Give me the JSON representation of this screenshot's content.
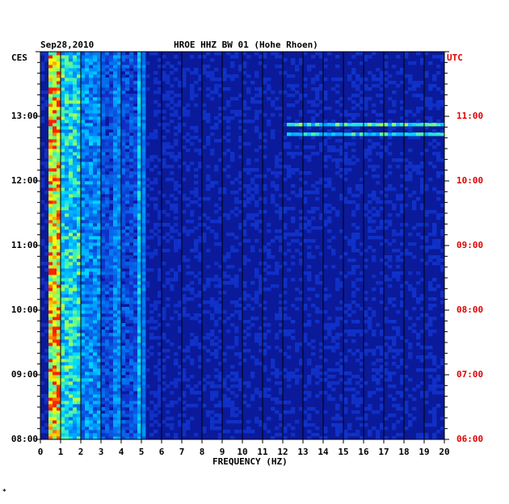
{
  "header": {
    "date": "Sep28,2010",
    "station": "HROE HHZ BW 01 (Hohe Rhoen)",
    "left_zone": "CES",
    "right_zone": "UTC"
  },
  "footer_mark": "*",
  "chart_data": {
    "type": "heatmap",
    "title": "HROE HHZ BW 01 (Hohe Rhoen)",
    "date": "Sep28,2010",
    "xlabel": "FREQUENCY (HZ)",
    "xlim": [
      0,
      20
    ],
    "x_ticks": [
      "0",
      "1",
      "2",
      "3",
      "4",
      "5",
      "6",
      "7",
      "8",
      "9",
      "10",
      "11",
      "12",
      "13",
      "14",
      "15",
      "16",
      "17",
      "18",
      "19",
      "20"
    ],
    "y_left_label": "CES",
    "y_right_label": "UTC",
    "y_left_ticks": [
      "13:00",
      "12:00",
      "11:00",
      "10:00",
      "09:00",
      "08:00"
    ],
    "y_right_ticks": [
      "11:00",
      "10:00",
      "09:00",
      "08:00",
      "07:00",
      "06:00"
    ],
    "y_range_utc_hours": [
      6.0,
      12.0
    ],
    "grid": true,
    "colors": {
      "background": "#0a1a9a",
      "low": "#1030c8",
      "mid": "#00c8ff",
      "high": "#ffff00",
      "peak": "#ff2000",
      "grid": "#000000",
      "right_labels": "#e00000"
    },
    "features": [
      {
        "kind": "band",
        "freq_hz": [
          0.3,
          0.9
        ],
        "intensity": "high"
      },
      {
        "kind": "band",
        "freq_hz": [
          0.9,
          3.0
        ],
        "intensity": "mid"
      },
      {
        "kind": "line",
        "freq_hz": 3.7,
        "intensity": "low"
      },
      {
        "kind": "line",
        "freq_hz": 4.9,
        "intensity": "mid"
      },
      {
        "kind": "streak",
        "utc_hour": 10.85,
        "freq_hz": [
          12.0,
          20.0
        ],
        "intensity": "mid"
      },
      {
        "kind": "streak",
        "utc_hour": 10.7,
        "freq_hz": [
          12.0,
          20.0
        ],
        "intensity": "mid"
      }
    ]
  }
}
